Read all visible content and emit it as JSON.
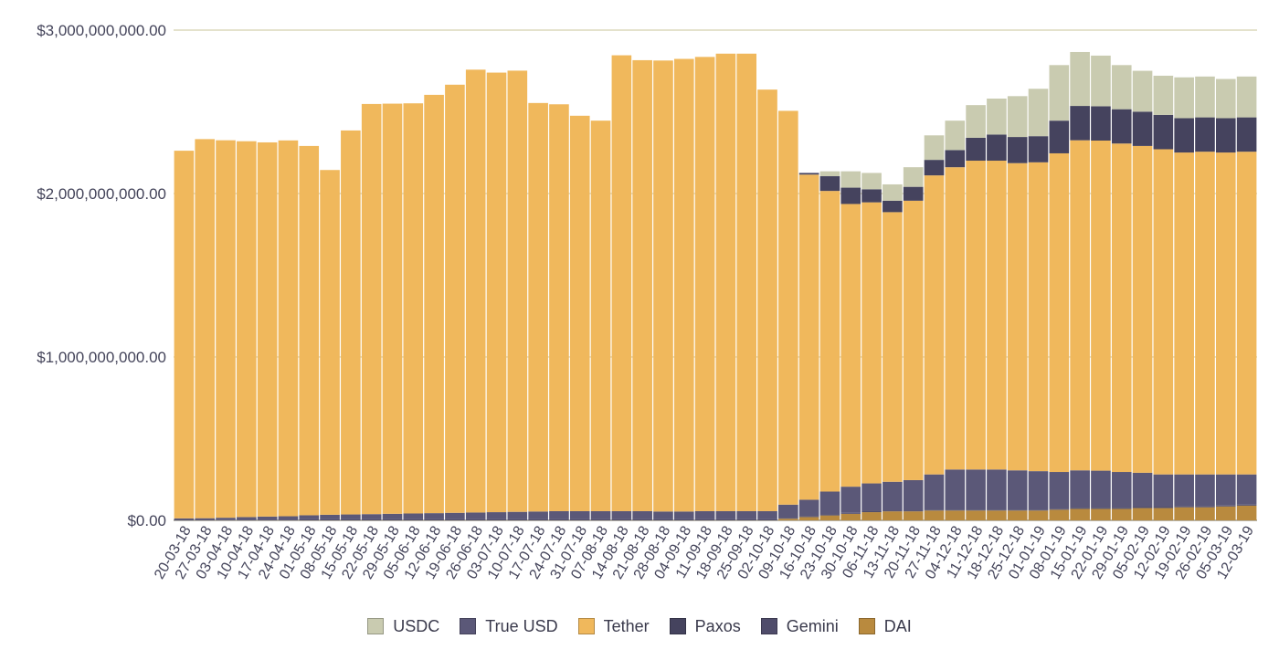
{
  "chart_data": {
    "type": "bar",
    "stacked": true,
    "title": "",
    "xlabel": "",
    "ylabel": "",
    "ylim": [
      0,
      3000000000
    ],
    "y_ticks": [
      {
        "value": 0,
        "label": "$0.00"
      },
      {
        "value": 1000000000,
        "label": "$1,000,000,000.00"
      },
      {
        "value": 2000000000,
        "label": "$2,000,000,000.00"
      },
      {
        "value": 3000000000,
        "label": "$3,000,000,000.00"
      }
    ],
    "grid": true,
    "legend_position": "bottom",
    "x_tick_labels": [
      "20-03-18",
      "27-03-18",
      "03-04-18",
      "10-04-18",
      "17-04-18",
      "24-04-18",
      "01-05-18",
      "08-05-18",
      "15-05-18",
      "22-05-18",
      "29-05-18",
      "05-06-18",
      "12-06-18",
      "19-06-18",
      "26-06-18",
      "03-07-18",
      "10-07-18",
      "17-07-18",
      "24-07-18",
      "31-07-18",
      "07-08-18",
      "14-08-18",
      "21-08-18",
      "28-08-18",
      "04-09-18",
      "11-09-18",
      "18-09-18",
      "25-09-18",
      "02-10-18",
      "09-10-18",
      "16-10-18",
      "23-10-18",
      "30-10-18",
      "06-11-18",
      "13-11-18",
      "20-11-18",
      "27-11-18",
      "04-12-18",
      "11-12-18",
      "18-12-18",
      "25-12-18",
      "01-01-19",
      "08-01-19",
      "15-01-19",
      "22-01-19",
      "29-01-19",
      "05-02-19",
      "12-02-19",
      "19-02-19",
      "26-02-19",
      "05-03-19",
      "12-03-19"
    ],
    "series": [
      {
        "name": "DAI",
        "color": "#b98a3e",
        "values": [
          0,
          0,
          0,
          0,
          0,
          0,
          0,
          0,
          0,
          0,
          0,
          0,
          0,
          0,
          0,
          0,
          0,
          0,
          0,
          0,
          0,
          0,
          0,
          0,
          0,
          0,
          0,
          0,
          0,
          10000000,
          20000000,
          30000000,
          40000000,
          50000000,
          55000000,
          55000000,
          60000000,
          60000000,
          60000000,
          60000000,
          60000000,
          60000000,
          65000000,
          70000000,
          70000000,
          70000000,
          75000000,
          75000000,
          80000000,
          80000000,
          85000000,
          90000000
        ]
      },
      {
        "name": "Gemini",
        "color": "#4f4c6a",
        "values": [
          2000000,
          3000000,
          4000000,
          5000000,
          5000000,
          5000000,
          6000000,
          6000000,
          6000000,
          6000000,
          6000000,
          6000000,
          6000000,
          6000000,
          6000000,
          6000000,
          6000000,
          6000000,
          6000000,
          6000000,
          6000000,
          6000000,
          6000000,
          6000000,
          6000000,
          6000000,
          6000000,
          6000000,
          6000000,
          6000000,
          6000000,
          6000000,
          6000000,
          6000000,
          6000000,
          6000000,
          6000000,
          6000000,
          6000000,
          6000000,
          6000000,
          6000000,
          6000000,
          6000000,
          6000000,
          6000000,
          6000000,
          6000000,
          6000000,
          6000000,
          6000000,
          6000000
        ]
      },
      {
        "name": "True USD",
        "color": "#5b5878",
        "values": [
          10000000,
          10000000,
          12000000,
          15000000,
          18000000,
          20000000,
          25000000,
          28000000,
          30000000,
          32000000,
          34000000,
          36000000,
          38000000,
          40000000,
          42000000,
          44000000,
          46000000,
          48000000,
          50000000,
          50000000,
          50000000,
          50000000,
          50000000,
          48000000,
          48000000,
          50000000,
          50000000,
          50000000,
          50000000,
          80000000,
          100000000,
          140000000,
          160000000,
          170000000,
          175000000,
          185000000,
          215000000,
          245000000,
          245000000,
          245000000,
          240000000,
          235000000,
          225000000,
          230000000,
          228000000,
          220000000,
          210000000,
          200000000,
          195000000,
          195000000,
          190000000,
          185000000
        ]
      },
      {
        "name": "Tether",
        "color": "#f0b85c",
        "values": [
          2250000000,
          2320000000,
          2310000000,
          2300000000,
          2290000000,
          2300000000,
          2260000000,
          2110000000,
          2350000000,
          2510000000,
          2510000000,
          2510000000,
          2560000000,
          2620000000,
          2710000000,
          2690000000,
          2700000000,
          2500000000,
          2490000000,
          2420000000,
          2390000000,
          2790000000,
          2760000000,
          2760000000,
          2770000000,
          2780000000,
          2800000000,
          2800000000,
          2580000000,
          2410000000,
          1990000000,
          1840000000,
          1730000000,
          1720000000,
          1650000000,
          1710000000,
          1830000000,
          1850000000,
          1890000000,
          1890000000,
          1880000000,
          1890000000,
          1950000000,
          2020000000,
          2020000000,
          2010000000,
          2000000000,
          1990000000,
          1970000000,
          1975000000,
          1970000000,
          1975000000
        ]
      },
      {
        "name": "Paxos",
        "color": "#45435e",
        "values": [
          0,
          0,
          0,
          0,
          0,
          0,
          0,
          0,
          0,
          0,
          0,
          0,
          0,
          0,
          0,
          0,
          0,
          0,
          0,
          0,
          0,
          0,
          0,
          0,
          0,
          0,
          0,
          0,
          0,
          0,
          10000000,
          90000000,
          100000000,
          80000000,
          70000000,
          85000000,
          95000000,
          105000000,
          140000000,
          160000000,
          160000000,
          160000000,
          200000000,
          210000000,
          210000000,
          210000000,
          210000000,
          210000000,
          210000000,
          210000000,
          210000000,
          210000000
        ]
      },
      {
        "name": "USDC",
        "color": "#c9cbb0",
        "values": [
          0,
          0,
          0,
          0,
          0,
          0,
          0,
          0,
          0,
          0,
          0,
          0,
          0,
          0,
          0,
          0,
          0,
          0,
          0,
          0,
          0,
          0,
          0,
          0,
          0,
          0,
          0,
          0,
          0,
          0,
          0,
          30000000,
          100000000,
          100000000,
          100000000,
          120000000,
          150000000,
          180000000,
          200000000,
          220000000,
          250000000,
          290000000,
          340000000,
          330000000,
          310000000,
          270000000,
          250000000,
          240000000,
          250000000,
          250000000,
          240000000,
          250000000
        ]
      }
    ],
    "legend": [
      {
        "name": "USDC",
        "color": "#c9cbb0"
      },
      {
        "name": "True USD",
        "color": "#5b5878"
      },
      {
        "name": "Tether",
        "color": "#f0b85c"
      },
      {
        "name": "Paxos",
        "color": "#45435e"
      },
      {
        "name": "Gemini",
        "color": "#4f4c6a"
      },
      {
        "name": "DAI",
        "color": "#b98a3e"
      }
    ]
  }
}
